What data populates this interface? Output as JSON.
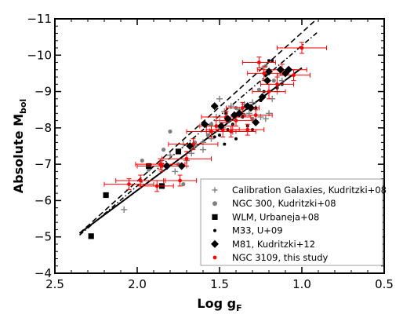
{
  "chart_data": {
    "type": "scatter",
    "xlabel": "Log g",
    "xlabel_sub": "F",
    "ylabel": "Absolute M",
    "ylabel_sub": "bol",
    "xlim": [
      2.5,
      0.5
    ],
    "ylim": [
      -4,
      -11
    ],
    "x_ticks": [
      2.5,
      2.0,
      1.5,
      1.0,
      0.5
    ],
    "x_tick_labels": [
      "2.5",
      "2.0",
      "1.5",
      "1.0",
      "0.5"
    ],
    "y_ticks": [
      -4,
      -5,
      -6,
      -7,
      -8,
      -9,
      -10,
      -11
    ],
    "y_tick_labels": [
      "−4",
      "−5",
      "−6",
      "−7",
      "−8",
      "−9",
      "−10",
      "−11"
    ],
    "grid": false,
    "legend_position": "bottom-right",
    "series": [
      {
        "name": "Calibration Galaxies, Kudritzki+08",
        "marker": "plus",
        "color": "#808080",
        "points": [
          [
            2.08,
            -5.75
          ],
          [
            1.8,
            -7.25
          ],
          [
            1.77,
            -6.8
          ],
          [
            1.72,
            -7.55
          ],
          [
            1.67,
            -7.3
          ],
          [
            1.65,
            -7.5
          ],
          [
            1.6,
            -7.4
          ],
          [
            1.56,
            -7.9
          ],
          [
            1.55,
            -7.7
          ],
          [
            1.52,
            -8.3
          ],
          [
            1.48,
            -8.0
          ],
          [
            1.47,
            -8.45
          ],
          [
            1.45,
            -8.2
          ],
          [
            1.43,
            -8.6
          ],
          [
            1.4,
            -8.3
          ],
          [
            1.38,
            -8.5
          ],
          [
            1.35,
            -8.65
          ],
          [
            1.32,
            -8.4
          ],
          [
            1.3,
            -8.7
          ],
          [
            1.28,
            -8.55
          ],
          [
            1.25,
            -8.3
          ],
          [
            1.22,
            -8.25
          ],
          [
            1.2,
            -8.4
          ],
          [
            1.18,
            -8.8
          ],
          [
            1.15,
            -9.0
          ],
          [
            1.12,
            -9.3
          ],
          [
            1.5,
            -8.8
          ],
          [
            1.42,
            -7.9
          ],
          [
            1.6,
            -7.6
          ],
          [
            1.7,
            -7.1
          ]
        ]
      },
      {
        "name": "NGC 300, Kudritzki+08",
        "marker": "circle",
        "color": "#808080",
        "points": [
          [
            1.97,
            -7.1
          ],
          [
            1.93,
            -6.85
          ],
          [
            1.84,
            -7.4
          ],
          [
            1.8,
            -7.9
          ],
          [
            1.75,
            -7.0
          ],
          [
            1.72,
            -6.45
          ],
          [
            1.65,
            -7.6
          ],
          [
            1.57,
            -7.8
          ],
          [
            1.55,
            -8.1
          ],
          [
            1.5,
            -8.0
          ],
          [
            1.45,
            -8.2
          ],
          [
            1.4,
            -8.55
          ],
          [
            1.35,
            -8.35
          ],
          [
            1.3,
            -8.25
          ],
          [
            1.26,
            -9.05
          ],
          [
            1.22,
            -9.7
          ],
          [
            1.17,
            -9.3
          ]
        ]
      },
      {
        "name": "WLM, Urbaneja+08",
        "marker": "square",
        "color": "#000000",
        "points": [
          [
            2.28,
            -5.02
          ],
          [
            2.19,
            -6.15
          ],
          [
            1.93,
            -6.95
          ],
          [
            1.85,
            -6.4
          ],
          [
            1.75,
            -7.35
          ]
        ]
      },
      {
        "name": "M33, U+09",
        "marker": "dot",
        "color": "#000000",
        "points": [
          [
            1.53,
            -7.75
          ],
          [
            1.5,
            -7.8
          ],
          [
            1.47,
            -7.55
          ],
          [
            1.45,
            -7.95
          ],
          [
            1.42,
            -8.1
          ],
          [
            1.4,
            -7.7
          ],
          [
            1.36,
            -8.3
          ],
          [
            1.33,
            -8.05
          ],
          [
            1.3,
            -7.95
          ],
          [
            1.28,
            -8.55
          ],
          [
            1.25,
            -8.75
          ],
          [
            1.23,
            -9.0
          ],
          [
            1.22,
            -9.45
          ],
          [
            1.2,
            -9.85
          ],
          [
            1.18,
            -9.85
          ],
          [
            1.15,
            -9.1
          ],
          [
            1.12,
            -9.2
          ],
          [
            1.46,
            -8.4
          ]
        ]
      },
      {
        "name": "M81, Kudritzki+12",
        "marker": "diamond",
        "color": "#000000",
        "points": [
          [
            1.82,
            -6.95
          ],
          [
            1.73,
            -6.95
          ],
          [
            1.68,
            -7.5
          ],
          [
            1.59,
            -8.1
          ],
          [
            1.53,
            -8.6
          ],
          [
            1.49,
            -8.05
          ],
          [
            1.45,
            -8.25
          ],
          [
            1.41,
            -8.35
          ],
          [
            1.38,
            -8.4
          ],
          [
            1.33,
            -8.6
          ],
          [
            1.31,
            -8.55
          ],
          [
            1.28,
            -8.15
          ],
          [
            1.24,
            -8.85
          ],
          [
            1.21,
            -9.3
          ],
          [
            1.2,
            -9.55
          ],
          [
            1.13,
            -9.6
          ],
          [
            1.1,
            -9.5
          ],
          [
            1.08,
            -9.6
          ]
        ]
      },
      {
        "name": "NGC 3109, this study",
        "marker": "circle-errorbar",
        "color": "#ff0000",
        "points": [
          {
            "x": 2.05,
            "y": -6.45,
            "xerr": 0.15,
            "yerr": 0.15
          },
          {
            "x": 1.98,
            "y": -6.55,
            "xerr": 0.15,
            "yerr": 0.15
          },
          {
            "x": 1.88,
            "y": -6.4,
            "xerr": 0.1,
            "yerr": 0.15
          },
          {
            "x": 1.86,
            "y": -7.0,
            "xerr": 0.15,
            "yerr": 0.15
          },
          {
            "x": 1.85,
            "y": -6.95,
            "xerr": 0.15,
            "yerr": 0.15
          },
          {
            "x": 1.74,
            "y": -6.55,
            "xerr": 0.1,
            "yerr": 0.15
          },
          {
            "x": 1.7,
            "y": -7.15,
            "xerr": 0.15,
            "yerr": 0.2
          },
          {
            "x": 1.66,
            "y": -7.55,
            "xerr": 0.15,
            "yerr": 0.15
          },
          {
            "x": 1.55,
            "y": -7.9,
            "xerr": 0.15,
            "yerr": 0.15
          },
          {
            "x": 1.52,
            "y": -8.05,
            "xerr": 0.1,
            "yerr": 0.15
          },
          {
            "x": 1.48,
            "y": -7.95,
            "xerr": 0.1,
            "yerr": 0.2
          },
          {
            "x": 1.46,
            "y": -8.3,
            "xerr": 0.15,
            "yerr": 0.15
          },
          {
            "x": 1.43,
            "y": -7.9,
            "xerr": 0.15,
            "yerr": 0.15
          },
          {
            "x": 1.4,
            "y": -8.2,
            "xerr": 0.1,
            "yerr": 0.15
          },
          {
            "x": 1.36,
            "y": -8.55,
            "xerr": 0.1,
            "yerr": 0.15
          },
          {
            "x": 1.33,
            "y": -7.95,
            "xerr": 0.1,
            "yerr": 0.15
          },
          {
            "x": 1.28,
            "y": -8.35,
            "xerr": 0.1,
            "yerr": 0.15
          },
          {
            "x": 1.26,
            "y": -9.8,
            "xerr": 0.1,
            "yerr": 0.15
          },
          {
            "x": 1.23,
            "y": -9.5,
            "xerr": 0.1,
            "yerr": 0.2
          },
          {
            "x": 1.2,
            "y": -9.0,
            "xerr": 0.1,
            "yerr": 0.2
          },
          {
            "x": 1.15,
            "y": -9.2,
            "xerr": 0.1,
            "yerr": 0.2
          },
          {
            "x": 1.12,
            "y": -9.6,
            "xerr": 0.15,
            "yerr": 0.15
          },
          {
            "x": 1.05,
            "y": -9.45,
            "xerr": 0.1,
            "yerr": 0.15
          },
          {
            "x": 1.0,
            "y": -10.2,
            "xerr": 0.15,
            "yerr": 0.15
          }
        ]
      }
    ],
    "fits": [
      {
        "style": "solid",
        "points": [
          [
            2.35,
            -5.1
          ],
          [
            1.0,
            -9.65
          ]
        ]
      },
      {
        "style": "dashed",
        "points": [
          [
            2.35,
            -5.1
          ],
          [
            0.92,
            -10.95
          ]
        ]
      },
      {
        "style": "dashdot",
        "points": [
          [
            2.35,
            -5.05
          ],
          [
            0.9,
            -10.65
          ]
        ]
      }
    ]
  }
}
